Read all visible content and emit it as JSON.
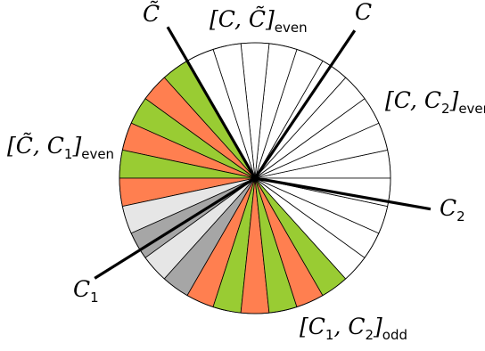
{
  "colors": {
    "green": "#99cc33",
    "orange": "#ff7f50",
    "light_gray": "#e6e6e6",
    "dark_gray": "#a6a6a6",
    "white": "#ffffff",
    "outline": "#000000"
  },
  "sector_fills": [
    "white",
    "white",
    "white",
    "white",
    "white",
    "white",
    "white",
    "white",
    "white",
    "white",
    "green",
    "orange",
    "green",
    "orange",
    "green",
    "orange",
    "light_gray",
    "dark_gray",
    "light_gray",
    "dark_gray",
    "orange",
    "green",
    "orange",
    "green",
    "orange",
    "green",
    "white",
    "white",
    "white",
    "white"
  ],
  "lines": [
    {
      "name": "C",
      "angle_deg": 56
    },
    {
      "name": "C-tilde",
      "angle_deg": 120
    },
    {
      "name": "C1",
      "angle_deg": 212
    },
    {
      "name": "C2",
      "angle_deg": 350
    }
  ],
  "labels": {
    "c_tilde": {
      "main": "C̃"
    },
    "c": {
      "main": "C"
    },
    "c1": {
      "main": "C",
      "sub": "1"
    },
    "c2": {
      "main": "C",
      "sub": "2"
    },
    "c_ctilde_even": {
      "main": "[C, C̃]",
      "sub": "even"
    },
    "c_c2_even": {
      "main": "[C, C",
      "sub2": "2",
      "close": "]",
      "sub": "even"
    },
    "ctilde_c1_even": {
      "main": "[C̃, C",
      "sub2": "1",
      "close": "]",
      "sub": "even"
    },
    "c1_c2_odd": {
      "main": "[C",
      "sub1": "1",
      "mid": ", C",
      "sub2": "2",
      "close": "]",
      "sub": "odd"
    }
  }
}
